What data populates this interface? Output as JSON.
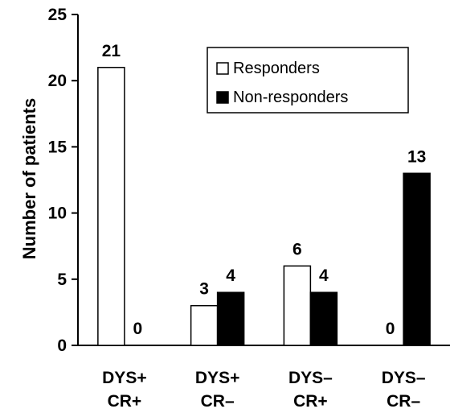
{
  "chart_data": {
    "type": "bar",
    "categories": [
      [
        "DYS+",
        "CR+"
      ],
      [
        "DYS+",
        "CR–"
      ],
      [
        "DYS–",
        "CR+"
      ],
      [
        "DYS–",
        "CR–"
      ]
    ],
    "series": [
      {
        "name": "Responders",
        "values": [
          21,
          3,
          6,
          0
        ],
        "color": "#ffffff"
      },
      {
        "name": "Non-responders",
        "values": [
          0,
          4,
          4,
          13
        ],
        "color": "#000000"
      }
    ],
    "title": "",
    "xlabel": "",
    "ylabel": "Number of patients",
    "ylim": [
      0,
      25
    ],
    "yticks": [
      0,
      5,
      10,
      15,
      20,
      25
    ],
    "legend_position": "top-right",
    "grid": false
  }
}
